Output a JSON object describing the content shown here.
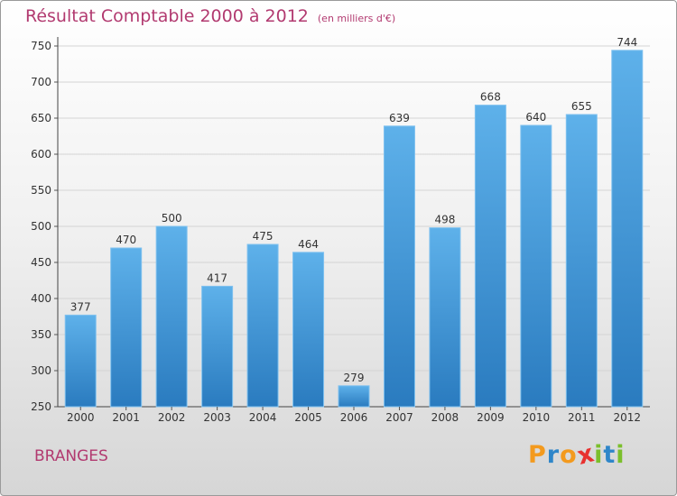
{
  "header": {
    "title": "Résultat Comptable 2000 à 2012",
    "unit_note": "(en milliers d'€)"
  },
  "footer": {
    "place": "BRANGES",
    "logo_letters": [
      "P",
      "r",
      "o",
      "x",
      "i",
      "t",
      "i"
    ],
    "logo_colors": [
      "#f39a1e",
      "#2f86c9",
      "#f39a1e",
      "#e8312f",
      "#7bbf2c",
      "#2f86c9",
      "#7bbf2c"
    ]
  },
  "colors": {
    "title": "#b23a70",
    "bar_light": "#5eb1ea",
    "bar_dark": "#2a7bbf"
  },
  "chart_data": {
    "type": "bar",
    "title": "Résultat Comptable 2000 à 2012",
    "subtitle": "(en milliers d'€)",
    "xlabel": "",
    "ylabel": "",
    "categories": [
      "2000",
      "2001",
      "2002",
      "2003",
      "2004",
      "2005",
      "2006",
      "2007",
      "2008",
      "2009",
      "2010",
      "2011",
      "2012"
    ],
    "values": [
      377,
      470,
      500,
      417,
      475,
      464,
      279,
      639,
      498,
      668,
      640,
      655,
      744
    ],
    "ylim": [
      250,
      750
    ],
    "yticks": [
      250,
      300,
      350,
      400,
      450,
      500,
      550,
      600,
      650,
      700,
      750
    ],
    "grid": true,
    "data_labels": true
  }
}
